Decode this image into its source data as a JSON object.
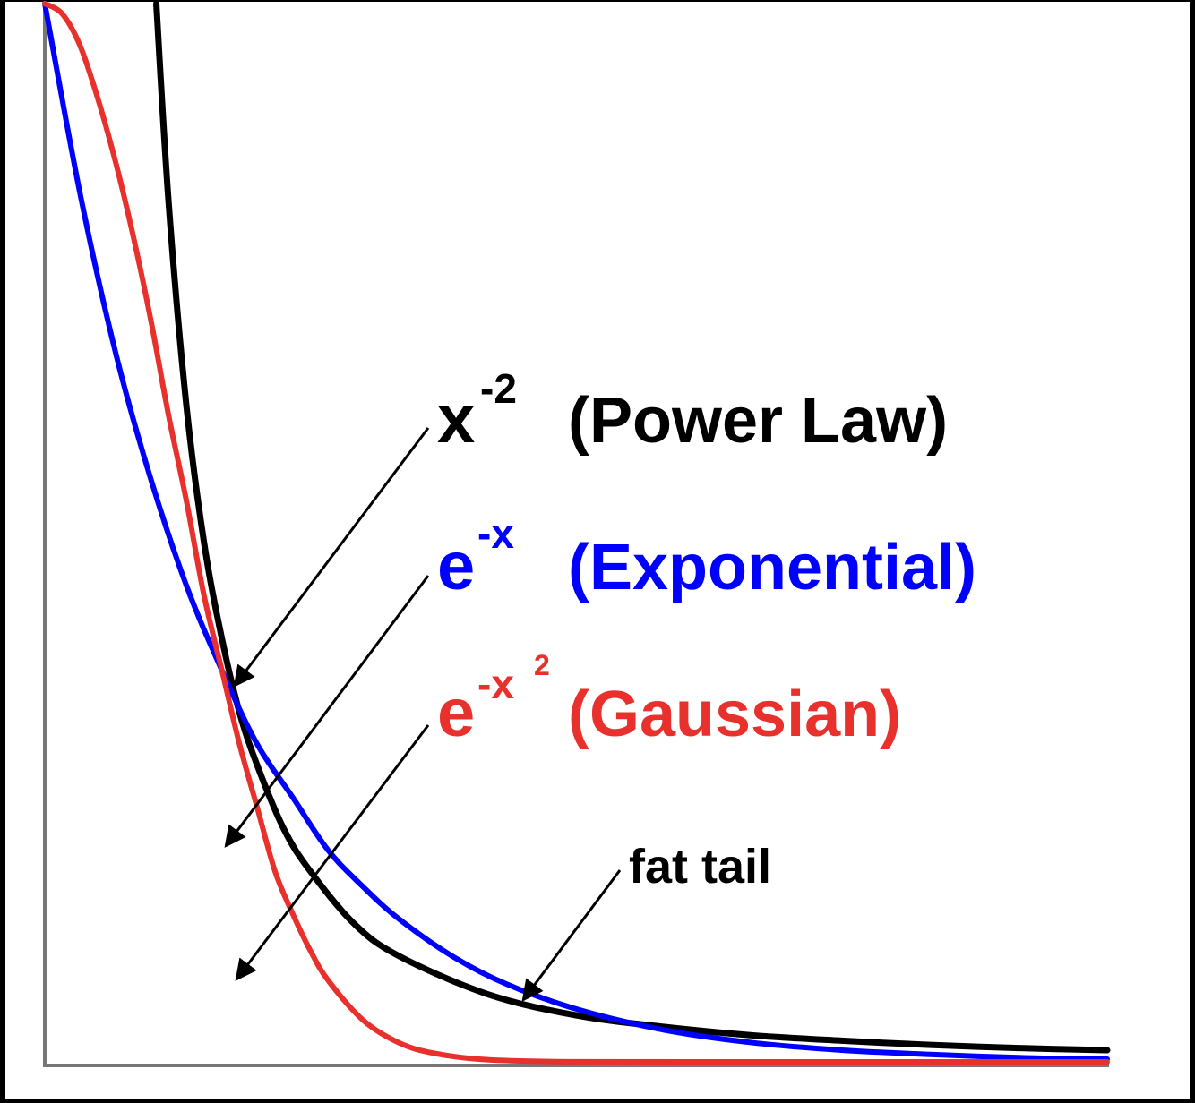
{
  "chart_data": {
    "type": "line",
    "title": "",
    "xlabel": "",
    "ylabel": "",
    "grid": false,
    "legend": "inline labels with arrows",
    "xlim": [
      0,
      6
    ],
    "ylim": [
      0,
      1
    ],
    "series": [
      {
        "key": "power",
        "formula_base": "x",
        "formula_exp": "-2",
        "name": "(Power Law)",
        "color": "#000000",
        "x": [
          0.63,
          0.7,
          0.8,
          0.9,
          1.0,
          1.1,
          1.2,
          1.35,
          1.5,
          1.75,
          2.0,
          2.5,
          3.0,
          3.5,
          4.0,
          4.5,
          5.0,
          5.5,
          6.0
        ],
        "y": [
          1.0,
          0.81,
          0.62,
          0.49,
          0.4,
          0.33,
          0.28,
          0.22,
          0.18,
          0.13,
          0.1,
          0.064,
          0.044,
          0.033,
          0.025,
          0.02,
          0.016,
          0.013,
          0.011
        ]
      },
      {
        "key": "exponential",
        "formula_base": "e",
        "formula_exp": "-x",
        "name": "(Exponential)",
        "color": "#0000ff",
        "x": [
          0.0,
          0.2,
          0.4,
          0.6,
          0.8,
          1.0,
          1.2,
          1.4,
          1.6,
          1.8,
          2.0,
          2.3,
          2.6,
          3.0,
          3.5,
          4.0,
          4.5,
          5.0,
          5.5,
          6.0
        ],
        "y": [
          1.0,
          0.82,
          0.67,
          0.55,
          0.45,
          0.37,
          0.3,
          0.25,
          0.2,
          0.165,
          0.135,
          0.1,
          0.074,
          0.05,
          0.03,
          0.018,
          0.011,
          0.007,
          0.004,
          0.0025
        ]
      },
      {
        "key": "gaussian",
        "formula_base": "e",
        "formula_exp": "-x",
        "formula_exp2": "2",
        "name": "(Gaussian)",
        "color": "#e8302c",
        "x": [
          0.0,
          0.1,
          0.2,
          0.3,
          0.4,
          0.5,
          0.6,
          0.7,
          0.8,
          0.9,
          1.0,
          1.1,
          1.2,
          1.3,
          1.4,
          1.5,
          1.6,
          1.8,
          2.0,
          2.2,
          2.5,
          3.0,
          4.0,
          6.0
        ],
        "y": [
          1.0,
          0.99,
          0.96,
          0.91,
          0.85,
          0.78,
          0.7,
          0.61,
          0.53,
          0.44,
          0.37,
          0.3,
          0.24,
          0.18,
          0.14,
          0.105,
          0.077,
          0.039,
          0.018,
          0.008,
          0.002,
          0.0001,
          0.0,
          0.0
        ]
      }
    ],
    "annotations": [
      {
        "text": "fat tail",
        "points_to": "power",
        "x": 2.7,
        "y": 0.05
      }
    ]
  }
}
